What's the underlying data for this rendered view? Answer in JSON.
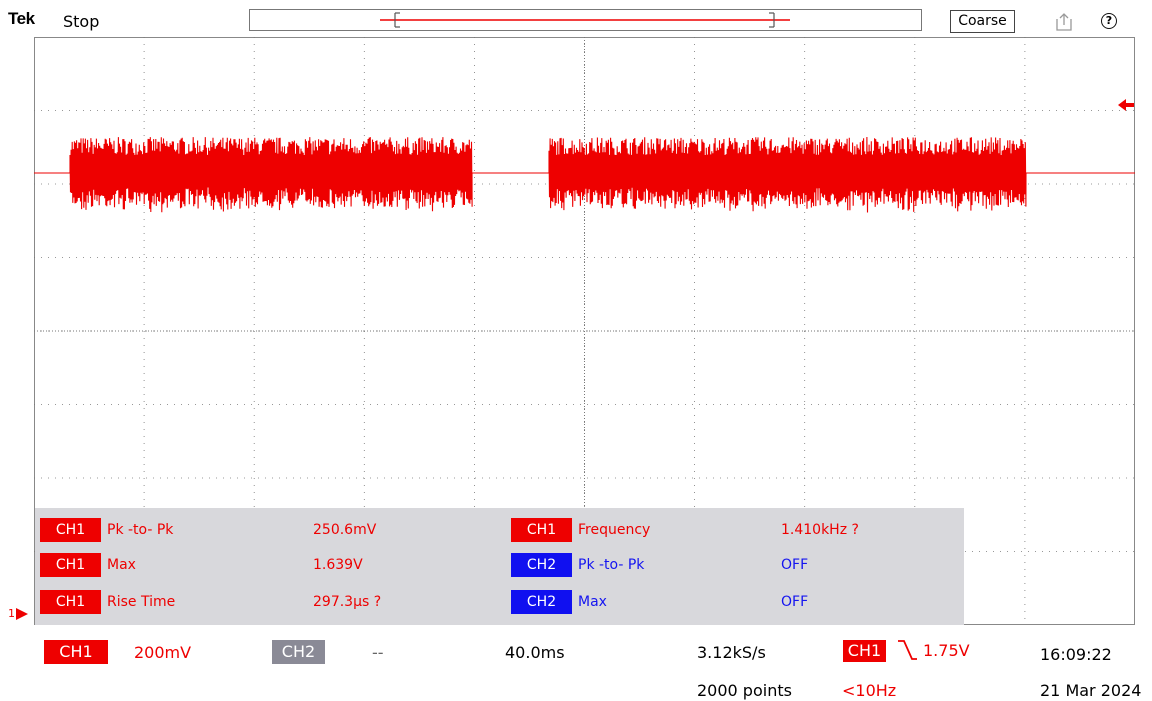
{
  "header": {
    "brand": "Tek",
    "run_state": "Stop",
    "coarse_label": "Coarse",
    "export_icon": "export-icon",
    "help_icon": "help-icon",
    "help_glyph": "?"
  },
  "colors": {
    "ch1": "#ee0000",
    "ch2": "#1010f0",
    "ch2_off": "#8a8a96",
    "panel_bg": "#d8d8dc",
    "grid": "#777777"
  },
  "measurements": [
    {
      "channel": "CH1",
      "name": "Pk -to- Pk",
      "value": "250.6mV"
    },
    {
      "channel": "CH1",
      "name": "Max",
      "value": "1.639V"
    },
    {
      "channel": "CH1",
      "name": "Rise Time",
      "value": "297.3µs  ?"
    },
    {
      "channel": "CH1",
      "name": "Frequency",
      "value": "1.410kHz  ?"
    },
    {
      "channel": "CH2",
      "name": "Pk -to- Pk",
      "value": "OFF"
    },
    {
      "channel": "CH2",
      "name": "Max",
      "value": "OFF"
    }
  ],
  "status": {
    "ch1_label": "CH1",
    "ch1_scale": "200mV",
    "ch2_label": "CH2",
    "ch2_scale": "--",
    "timebase": "40.0ms",
    "sample_rate": "3.12kS/s",
    "record_length": "2000 points",
    "trigger_source": "CH1",
    "trigger_slope_icon": "falling-edge-icon",
    "trigger_level": "1.75V",
    "trigger_freq": "<10Hz",
    "time": "16:09:22",
    "date": "21 Mar 2024"
  },
  "ch1_marker": "1"
}
